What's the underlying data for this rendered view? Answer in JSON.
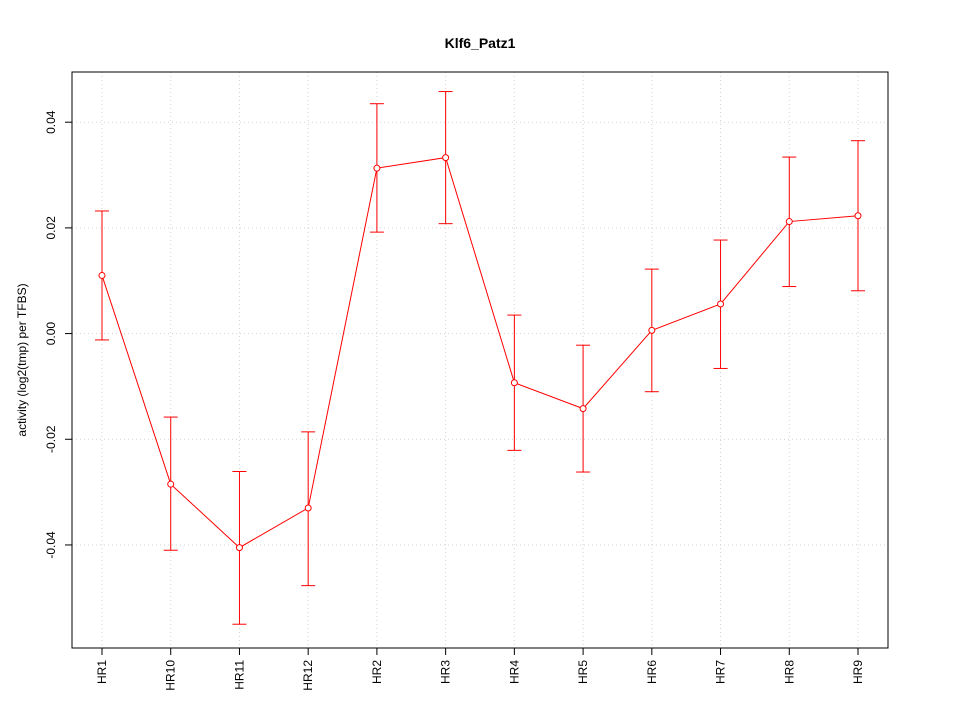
{
  "chart_data": {
    "type": "line",
    "title": "Klf6_Patz1",
    "xlabel": "",
    "ylabel": "activity (log2(tmp) per TFBS)",
    "categories": [
      "HR1",
      "HR10",
      "HR11",
      "HR12",
      "HR2",
      "HR3",
      "HR4",
      "HR5",
      "HR6",
      "HR7",
      "HR8",
      "HR9"
    ],
    "series": [
      {
        "values": [
          0.011,
          -0.0285,
          -0.0405,
          -0.033,
          0.0313,
          0.0333,
          -0.0093,
          -0.0142,
          0.0006,
          0.0056,
          0.0212,
          0.0223
        ],
        "upper": [
          0.0232,
          -0.0158,
          -0.0261,
          -0.0186,
          0.0435,
          0.0458,
          0.0035,
          -0.0022,
          0.0122,
          0.0177,
          0.0334,
          0.0365
        ],
        "lower": [
          -0.0012,
          -0.041,
          -0.055,
          -0.0477,
          0.0192,
          0.0208,
          -0.0221,
          -0.0262,
          -0.011,
          -0.0066,
          0.0089,
          0.0081
        ],
        "color": "#ff0000"
      }
    ],
    "yticks": [
      -0.04,
      -0.02,
      0.0,
      0.02,
      0.04
    ],
    "ytick_labels": [
      "-0.04",
      "-0.02",
      "0.00",
      "0.02",
      "0.04"
    ],
    "ylim": [
      -0.0595,
      0.0495
    ],
    "grid": true,
    "grid_color": "#d3d3d3",
    "axis_color": "#000000"
  }
}
